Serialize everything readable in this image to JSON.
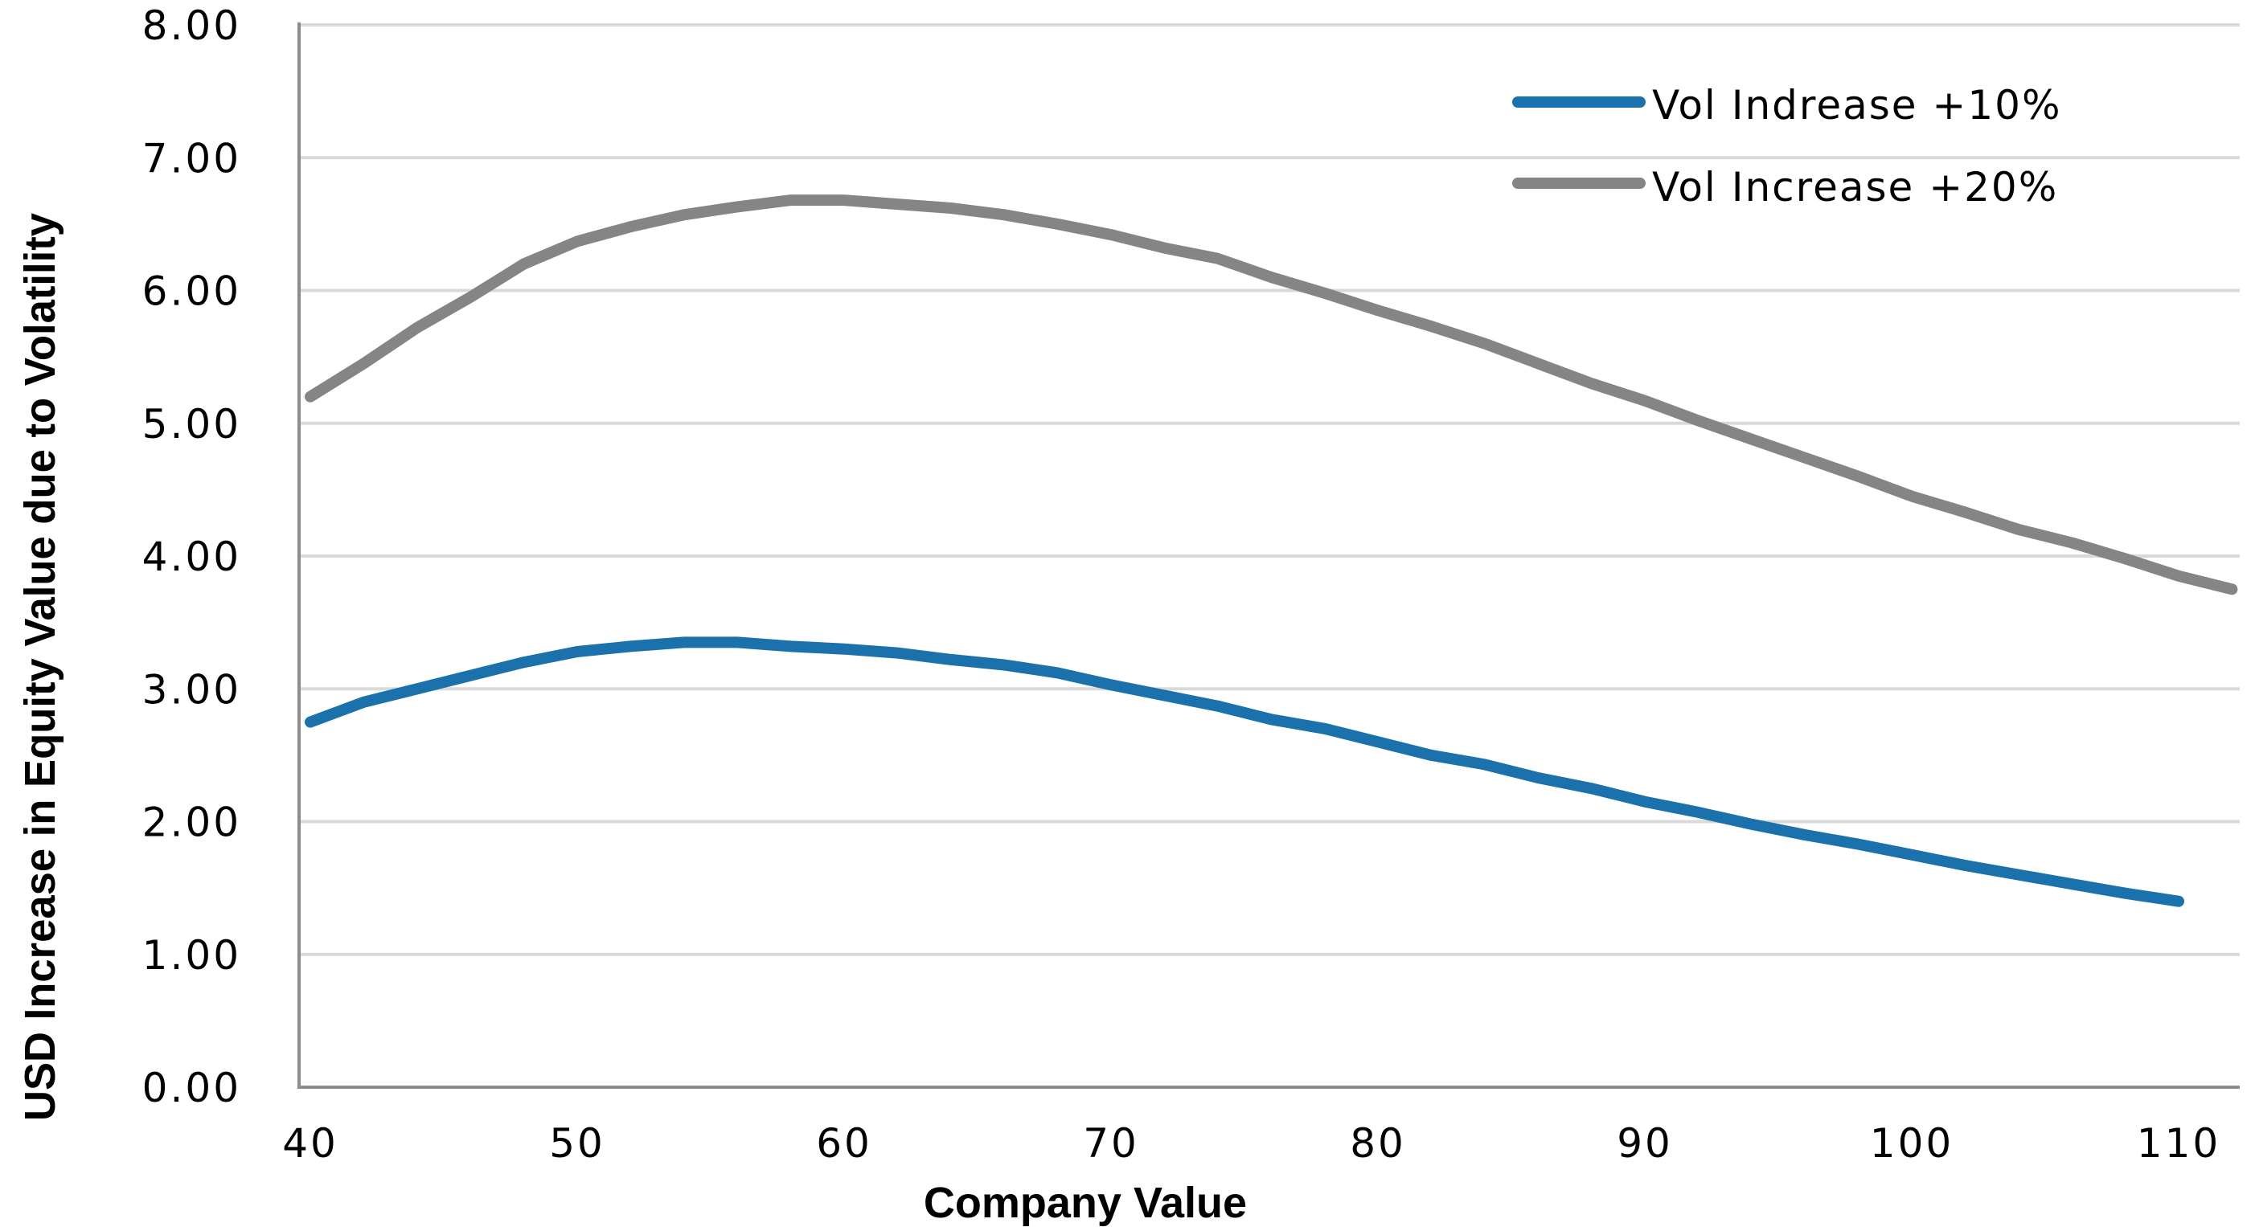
{
  "chart_data": {
    "type": "line",
    "title": "",
    "xlabel": "Company Value",
    "ylabel": "USD Increase in Equity Value due to Volatility",
    "xlim": [
      40,
      112
    ],
    "ylim": [
      0,
      8
    ],
    "xticks": [
      "40",
      "50",
      "60",
      "70",
      "80",
      "90",
      "100",
      "110"
    ],
    "yticks": [
      "0.00",
      "1.00",
      "2.00",
      "3.00",
      "4.00",
      "5.00",
      "6.00",
      "7.00",
      "8.00"
    ],
    "grid": "horizontal",
    "legend_position": "top-right",
    "series": [
      {
        "name": "Vol Indrease +10%",
        "color": "#1a71ab",
        "x": [
          40,
          42,
          44,
          46,
          48,
          50,
          52,
          54,
          56,
          58,
          60,
          62,
          64,
          66,
          68,
          70,
          72,
          74,
          76,
          78,
          80,
          82,
          84,
          86,
          88,
          90,
          92,
          94,
          96,
          98,
          100,
          102,
          104,
          106,
          108,
          110
        ],
        "y": [
          2.75,
          2.9,
          3.0,
          3.1,
          3.2,
          3.28,
          3.32,
          3.35,
          3.35,
          3.32,
          3.3,
          3.27,
          3.22,
          3.18,
          3.12,
          3.03,
          2.95,
          2.87,
          2.77,
          2.7,
          2.6,
          2.5,
          2.43,
          2.33,
          2.25,
          2.15,
          2.07,
          1.98,
          1.9,
          1.83,
          1.75,
          1.67,
          1.6,
          1.53,
          1.46,
          1.4
        ]
      },
      {
        "name": "Vol Increase +20%",
        "color": "#858585",
        "x": [
          40,
          42,
          44,
          46,
          48,
          50,
          52,
          54,
          56,
          58,
          60,
          62,
          64,
          66,
          68,
          70,
          72,
          74,
          76,
          78,
          80,
          82,
          84,
          86,
          88,
          90,
          92,
          94,
          96,
          98,
          100,
          102,
          104,
          106,
          108,
          110,
          112
        ],
        "y": [
          5.2,
          5.45,
          5.72,
          5.95,
          6.2,
          6.37,
          6.48,
          6.57,
          6.63,
          6.68,
          6.68,
          6.65,
          6.62,
          6.57,
          6.5,
          6.42,
          6.32,
          6.24,
          6.1,
          5.98,
          5.85,
          5.73,
          5.6,
          5.45,
          5.3,
          5.17,
          5.02,
          4.88,
          4.74,
          4.6,
          4.45,
          4.33,
          4.2,
          4.1,
          3.98,
          3.85,
          3.75
        ]
      }
    ]
  }
}
